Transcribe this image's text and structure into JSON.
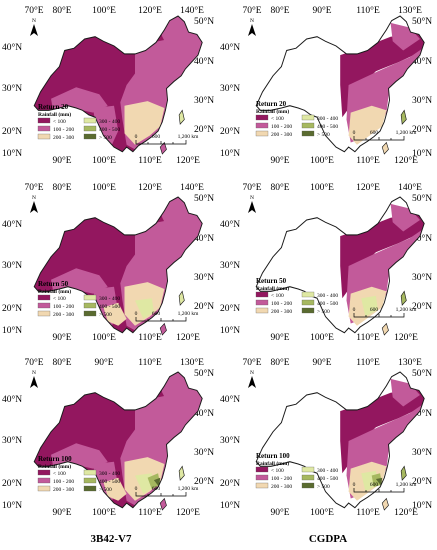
{
  "colors": {
    "lt100": "#93175f",
    "r100_200": "#c25a9a",
    "r200_300": "#f1d8b1",
    "r300_400": "#dfe8a3",
    "r400_500": "#a6b860",
    "gt500": "#5a6b30",
    "nodata": "#ffffff",
    "outline": "#1a1a1a"
  },
  "legend": {
    "title": "Rainfall (mm)",
    "items": [
      {
        "label": "< 100",
        "color_key": "lt100"
      },
      {
        "label": "300 - 400",
        "color_key": "r300_400"
      },
      {
        "label": "100 - 200",
        "color_key": "r100_200"
      },
      {
        "label": "400 - 500",
        "color_key": "r400_500"
      },
      {
        "label": "200 - 300",
        "color_key": "r200_300"
      },
      {
        "label": "> 500",
        "color_key": "gt500"
      }
    ]
  },
  "scalebar": {
    "labels": [
      "0",
      "600",
      "1,200 km"
    ]
  },
  "north_arrow": {
    "label": "N"
  },
  "datasets": {
    "left": {
      "name": "3B42-V7"
    },
    "right": {
      "name": "CGDPA"
    }
  },
  "panels": [
    {
      "dataset": "left",
      "return_label": "Return 20",
      "top_ticks": [
        "70°E",
        "80°E",
        "100°E",
        "120°E",
        "140°E"
      ],
      "bottom_ticks": [
        "90°E",
        "100°E",
        "110°E",
        "120°E"
      ],
      "left_ticks": [
        "40°N",
        "30°N",
        "20°N",
        "10°N"
      ],
      "right_ticks": [
        "50°N",
        "40°N",
        "30°N",
        "20°N"
      ]
    },
    {
      "dataset": "right",
      "return_label": "Return 20",
      "top_ticks": [
        "70°E",
        "80°E",
        "90°E",
        "110°E",
        "130°E"
      ],
      "bottom_ticks": [
        "90°E",
        "100°E",
        "110°E",
        "120°E"
      ],
      "left_ticks": [
        "40°N",
        "30°N",
        "20°N",
        "10°N"
      ],
      "right_ticks": [
        "50°N",
        "40°N",
        "30°N",
        "20°N",
        "10°N"
      ]
    },
    {
      "dataset": "left",
      "return_label": "Return 50",
      "top_ticks": [
        "70°E",
        "80°E",
        "100°E",
        "120°E",
        "140°E"
      ],
      "bottom_ticks": [
        "90°E",
        "100°E",
        "110°E",
        "120°E"
      ],
      "left_ticks": [
        "40°N",
        "30°N",
        "20°N",
        "10°N"
      ],
      "right_ticks": [
        "50°N",
        "40°N",
        "30°N",
        "20°N"
      ]
    },
    {
      "dataset": "right",
      "return_label": "Return 50",
      "top_ticks": [
        "70°E",
        "80°E",
        "100°E",
        "120°E",
        "140°E"
      ],
      "bottom_ticks": [
        "90°E",
        "100°E",
        "110°E",
        "120°E"
      ],
      "left_ticks": [
        "40°N",
        "30°N",
        "20°N",
        "10°N"
      ],
      "right_ticks": [
        "50°N",
        "40°N",
        "30°N",
        "20°N"
      ]
    },
    {
      "dataset": "left",
      "return_label": "Return 100",
      "top_ticks": [
        "70°E",
        "80°E",
        "90°E",
        "110°E",
        "130°E"
      ],
      "bottom_ticks": [
        "90°E",
        "100°E",
        "110°E",
        "120°E"
      ],
      "left_ticks": [
        "40°N",
        "30°N",
        "20°N",
        "10°N"
      ],
      "right_ticks": [
        "50°N",
        "40°N",
        "30°N",
        "20°N"
      ]
    },
    {
      "dataset": "right",
      "return_label": "Return 100",
      "top_ticks": [
        "70°E",
        "80°E",
        "90°E",
        "110°E",
        "130°E"
      ],
      "bottom_ticks": [
        "90°E",
        "100°E",
        "110°E",
        "120°E"
      ],
      "left_ticks": [
        "40°N",
        "30°N",
        "20°N",
        "10°N"
      ],
      "right_ticks": [
        "50°N",
        "40°N",
        "30°N",
        "20°N",
        "10°N"
      ]
    }
  ]
}
